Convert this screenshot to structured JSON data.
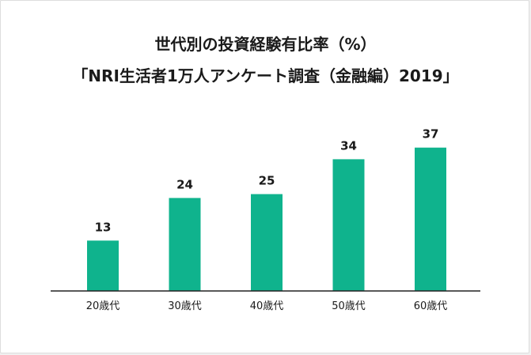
{
  "colors": {
    "bar": "#0fb38d",
    "axis": "#222222",
    "text": "#1a1a1a",
    "background": "#ffffff"
  },
  "chart_data": {
    "type": "bar",
    "title_lines": [
      "世代別の投資経験有比率（%）",
      "「NRI生活者1万人アンケート調査（金融編）2019」"
    ],
    "categories": [
      "20歳代",
      "30歳代",
      "40歳代",
      "50歳代",
      "60歳代"
    ],
    "values": [
      13,
      24,
      25,
      34,
      37
    ],
    "data_labels": [
      "13",
      "24",
      "25",
      "34",
      "37"
    ],
    "xlabel": "",
    "ylabel": "",
    "ylim": [
      0,
      40
    ],
    "grid": false,
    "legend": "none"
  }
}
